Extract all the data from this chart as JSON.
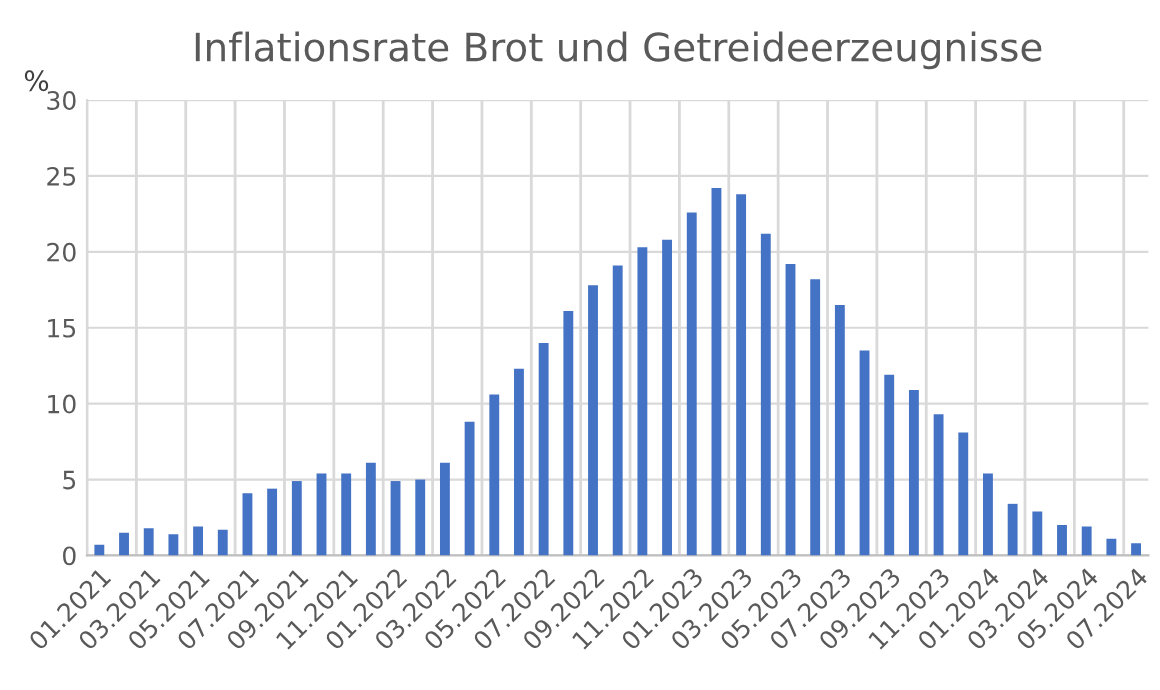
{
  "chart_data": {
    "type": "bar",
    "title": "Inflationsrate Brot und Getreideerzeugnisse",
    "ylabel": "%",
    "categories": [
      "01.2021",
      null,
      "03.2021",
      null,
      "05.2021",
      null,
      "07.2021",
      null,
      "09.2021",
      null,
      "11.2021",
      null,
      "01.2022",
      null,
      "03.2022",
      null,
      "05.2022",
      null,
      "07.2022",
      null,
      "09.2022",
      null,
      "11.2022",
      null,
      "01.2023",
      null,
      "03.2023",
      null,
      "05.2023",
      null,
      "07.2023",
      null,
      "09.2023",
      null,
      "11.2023",
      null,
      "01.2024",
      null,
      "03.2024",
      null,
      "05.2024",
      null,
      "07.2024"
    ],
    "values": [
      0.7,
      1.5,
      1.8,
      1.4,
      1.9,
      1.7,
      4.1,
      4.4,
      4.9,
      5.4,
      5.4,
      6.1,
      4.9,
      5.0,
      6.1,
      8.8,
      10.6,
      12.3,
      14.0,
      16.1,
      17.8,
      19.1,
      20.3,
      20.8,
      22.6,
      24.2,
      23.8,
      21.2,
      19.2,
      18.2,
      16.5,
      13.5,
      11.9,
      10.9,
      9.3,
      8.1,
      5.4,
      3.4,
      2.9,
      2.0,
      1.9,
      1.1,
      0.8
    ],
    "color": "#4472c4",
    "ylim": [
      0,
      30
    ],
    "yticks": [
      0,
      5,
      10,
      15,
      20,
      25,
      30
    ],
    "grid": true
  }
}
